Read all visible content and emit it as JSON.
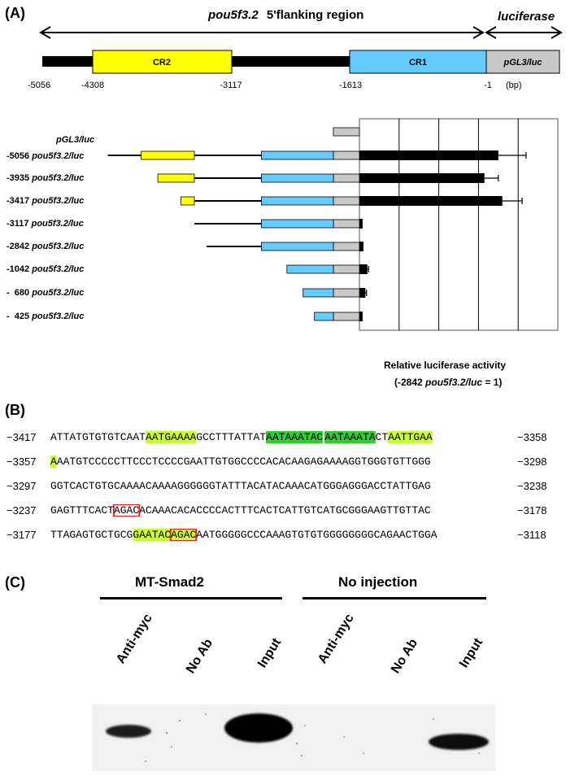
{
  "panelA": {
    "label": "(A)",
    "gene_name": "pou5f3.2",
    "region_label": "5'flanking region",
    "luciferase_label": "luciferase",
    "map_boxes": {
      "cr2": "CR2",
      "cr1": "CR1",
      "vector": "pGL3/luc"
    },
    "coords": [
      "-5056",
      "-4308",
      "-3117",
      "-1613",
      "-1"
    ],
    "unit": "(bp)",
    "construct_labels": [
      {
        "pos": "",
        "name": "pGL3/luc"
      },
      {
        "pos": "-5056",
        "name": "pou5f3.2/luc"
      },
      {
        "pos": "-3935",
        "name": "pou5f3.2/luc"
      },
      {
        "pos": "-3417",
        "name": "pou5f3.2/luc"
      },
      {
        "pos": "-3117",
        "name": "pou5f3.2/luc"
      },
      {
        "pos": "-2842",
        "name": "pou5f3.2/luc"
      },
      {
        "pos": "-1042",
        "name": "pou5f3.2/luc"
      },
      {
        "pos": "-  680",
        "name": "pou5f3.2/luc"
      },
      {
        "pos": "-  425",
        "name": "pou5f3.2/luc"
      }
    ],
    "xaxis_title": "Relative luciferase activity",
    "xaxis_sub_pre": "(-2842 ",
    "xaxis_sub_it": "pou5f3.2/luc",
    "xaxis_sub_post": " = 1)"
  },
  "chart_data": {
    "type": "bar",
    "orientation": "horizontal",
    "categories": [
      "pGL3/luc",
      "-5056 pou5f3.2/luc",
      "-3935 pou5f3.2/luc",
      "-3417 pou5f3.2/luc",
      "-3117 pou5f3.2/luc",
      "-2842 pou5f3.2/luc",
      "-1042 pou5f3.2/luc",
      "- 680 pou5f3.2/luc",
      "- 425 pou5f3.2/luc"
    ],
    "values": [
      0,
      35,
      31.5,
      36,
      0.8,
      1,
      2,
      1.5,
      0.8
    ],
    "errors": [
      0,
      7,
      3.5,
      5,
      0,
      0,
      0.3,
      0.3,
      0
    ],
    "xlabel": "Relative luciferase activity",
    "xlim": [
      0,
      50
    ],
    "xticks": [
      0,
      10,
      20,
      30,
      40,
      50
    ],
    "grid": true,
    "bar_color": "#000000"
  },
  "panelB": {
    "label": "(B)",
    "lines": [
      {
        "start": "−3417",
        "end": "−3358",
        "segs": [
          {
            "t": "ATTATGTGTGTCAAT",
            "c": ""
          },
          {
            "t": "AATGAAAA",
            "c": "lt"
          },
          {
            "t": "GCCTTTATTAT",
            "c": ""
          },
          {
            "t": "AATAAATAC",
            "c": "dk"
          },
          {
            "t": "AATAAATA",
            "c": "dk"
          },
          {
            "t": "CT",
            "c": ""
          },
          {
            "t": "AATTGAA",
            "c": "lt"
          }
        ]
      },
      {
        "start": "−3357",
        "end": "−3298",
        "segs": [
          {
            "t": "A",
            "c": "lt"
          },
          {
            "t": "AATGTCCCCCTTCCCTCCCCGAATTGTGGCCCCACACAAGAGAAAAGGTGGGTGTTGGG",
            "c": ""
          }
        ]
      },
      {
        "start": "−3297",
        "end": "−3238",
        "segs": [
          {
            "t": "GGTCACTGTGCAAAACAAAAGGGGGGTATTTACATACAAACATGGGAGGGACCTATTGAG",
            "c": ""
          }
        ]
      },
      {
        "start": "−3237",
        "end": "−3178",
        "segs": [
          {
            "t": "GAGTTTCACT",
            "c": ""
          },
          {
            "t": "AGAC",
            "c": "box"
          },
          {
            "t": "ACAAACACACCCCACTTTCACTCATTGTCATGCGGGAAGTTGTTAC",
            "c": ""
          }
        ]
      },
      {
        "start": "−3177",
        "end": "−3118",
        "segs": [
          {
            "t": "TTAGAGTGCTGCG",
            "c": ""
          },
          {
            "t": "GAATAC",
            "c": "lt"
          },
          {
            "t": "AGAC",
            "c": "ltbox"
          },
          {
            "t": "AATGGGGGCCCAAAGTGTGTGGGGGGGGCAGAACTGGA",
            "c": ""
          }
        ]
      }
    ]
  },
  "panelC": {
    "label": "(C)",
    "group1": "MT-Smad2",
    "group2": "No injection",
    "lanes": [
      "Anti-myc",
      "No Ab",
      "Input",
      "Anti-myc",
      "No Ab",
      "Input"
    ]
  }
}
